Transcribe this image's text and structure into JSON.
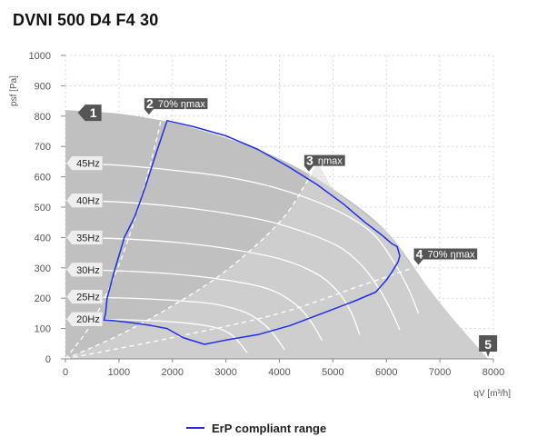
{
  "title": "DVNI 500 D4 F4 30",
  "chart_data": {
    "type": "area",
    "ylabel": "psf [Pa]",
    "xlabel": "qV [m³/h]",
    "xlim": [
      0,
      8000
    ],
    "ylim": [
      0,
      1000
    ],
    "x_ticks": [
      "0",
      "1000",
      "2000",
      "3000",
      "4000",
      "5000",
      "6000",
      "7000",
      "8000"
    ],
    "y_ticks": [
      "0",
      "100",
      "200",
      "300",
      "400",
      "500",
      "600",
      "700",
      "800",
      "900",
      "1000"
    ],
    "grid": "dotted",
    "colors": {
      "envelope": "#c0c0c0",
      "inner_region": "#d9d9d9",
      "erp": "#1f2ee6",
      "speed_lines": "#ffffff",
      "markers": "#555555"
    },
    "envelope": [
      [
        0,
        820
      ],
      [
        1000,
        808
      ],
      [
        2000,
        778
      ],
      [
        3000,
        728
      ],
      [
        4000,
        660
      ],
      [
        5000,
        560
      ],
      [
        6000,
        420
      ],
      [
        6800,
        230
      ],
      [
        7300,
        120
      ],
      [
        7900,
        0
      ]
    ],
    "speed_curves": [
      {
        "label": "45Hz",
        "x": [
          0,
          1000,
          2000,
          3000,
          4000,
          5000,
          5700,
          6100,
          6400,
          6600
        ],
        "y": [
          645,
          638,
          622,
          600,
          560,
          495,
          420,
          330,
          235,
          150
        ]
      },
      {
        "label": "40Hz",
        "x": [
          0,
          1000,
          2000,
          3000,
          4000,
          5000,
          5500,
          5850,
          6100,
          6250
        ],
        "y": [
          522,
          517,
          503,
          480,
          444,
          380,
          315,
          235,
          155,
          95
        ]
      },
      {
        "label": "35Hz",
        "x": [
          0,
          1000,
          2000,
          3000,
          4000,
          4700,
          5100,
          5350,
          5500
        ],
        "y": [
          400,
          396,
          385,
          364,
          330,
          280,
          220,
          150,
          80
        ]
      },
      {
        "label": "30Hz",
        "x": [
          0,
          1000,
          2000,
          3000,
          3800,
          4300,
          4600,
          4800
        ],
        "y": [
          294,
          290,
          280,
          260,
          230,
          180,
          120,
          60
        ]
      },
      {
        "label": "25Hz",
        "x": [
          0,
          1000,
          2000,
          2800,
          3400,
          3800,
          4100
        ],
        "y": [
          205,
          201,
          193,
          180,
          150,
          100,
          30
        ]
      },
      {
        "label": "20Hz",
        "x": [
          0,
          1000,
          2000,
          2700,
          3100,
          3400
        ],
        "y": [
          131,
          129,
          122,
          107,
          80,
          20
        ]
      }
    ],
    "erp_range": {
      "name": "ErP compliant range",
      "x": [
        750,
        780,
        900,
        1100,
        1300,
        1500,
        1700,
        1900,
        2400,
        3000,
        3600,
        4200,
        4700,
        5200,
        5600,
        5900,
        6100,
        6200,
        6250,
        6220,
        6150,
        6100,
        6000,
        5800,
        5400,
        4800,
        4200,
        3600,
        3000,
        2600,
        2200,
        1900,
        1600,
        1200,
        900,
        720,
        750
      ],
      "y": [
        150,
        200,
        280,
        400,
        470,
        570,
        680,
        785,
        765,
        735,
        690,
        630,
        575,
        510,
        450,
        410,
        380,
        370,
        340,
        320,
        300,
        285,
        260,
        220,
        190,
        150,
        110,
        80,
        62,
        48,
        70,
        100,
        110,
        120,
        126,
        128,
        150
      ]
    },
    "efficiency_lines": [
      {
        "id": "2",
        "label": "70% ηmax",
        "x": [
          0,
          500,
          1000,
          1400,
          1700,
          1850
        ],
        "y": [
          0,
          120,
          310,
          520,
          720,
          845
        ]
      },
      {
        "id": "3",
        "label": "ηmax",
        "x": [
          0,
          1000,
          2000,
          3000,
          4000,
          4500,
          4700
        ],
        "y": [
          0,
          78,
          175,
          290,
          450,
          580,
          650
        ]
      },
      {
        "id": "4",
        "label": "70% ηmax",
        "x": [
          0,
          2000,
          4000,
          5500,
          6500
        ],
        "y": [
          0,
          70,
          150,
          240,
          300
        ]
      }
    ],
    "markers": [
      {
        "id": "1",
        "label": ""
      },
      {
        "id": "2",
        "label": "70% ηmax"
      },
      {
        "id": "3",
        "label": "ηmax"
      },
      {
        "id": "4",
        "label": "70% ηmax"
      },
      {
        "id": "5",
        "label": ""
      }
    ],
    "legend": [
      {
        "label": "ErP compliant range",
        "color": "#1f2ee6"
      }
    ]
  }
}
